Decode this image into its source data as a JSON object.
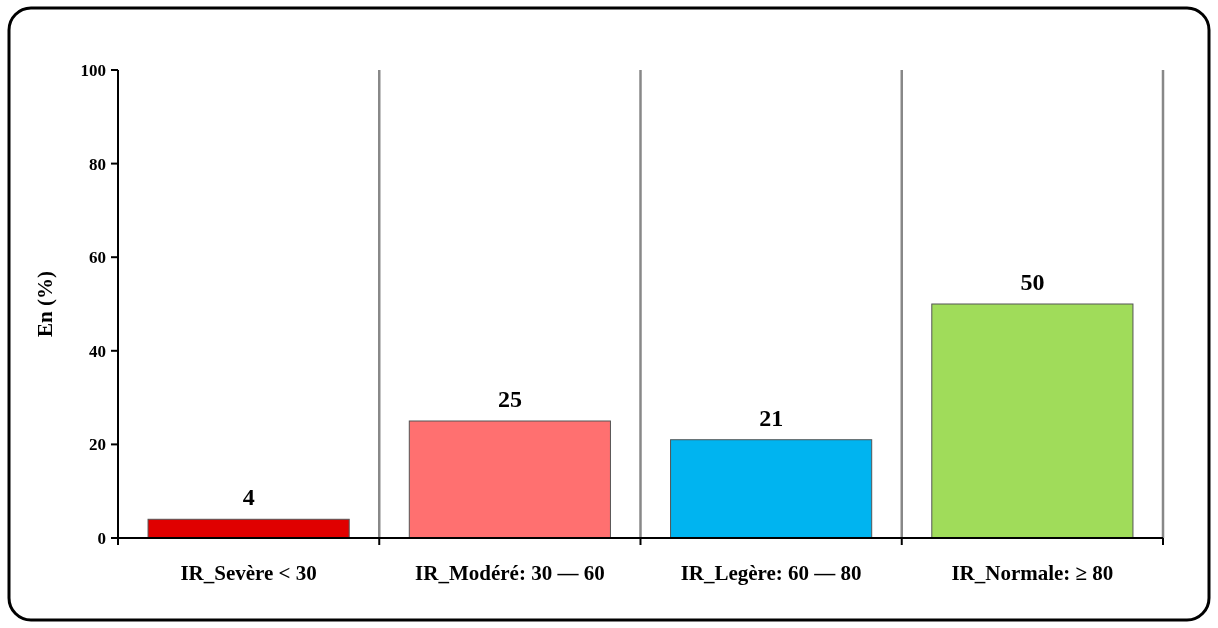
{
  "chart_data": {
    "type": "bar",
    "ylabel": "En (%)",
    "categories": [
      "IR_Sevère < 30",
      "IR_Modéré: 30 — 60",
      "IR_Legère: 60 — 80",
      "IR_Normale: ≥ 80"
    ],
    "values": [
      4,
      25,
      21,
      50
    ],
    "colors": [
      "#e00000",
      "#ff7070",
      "#00b4f0",
      "#a0dc5a"
    ],
    "ylim": [
      0,
      100
    ],
    "yticks": [
      0,
      20,
      40,
      60,
      80,
      100
    ],
    "grid": "x",
    "data_labels": true
  }
}
